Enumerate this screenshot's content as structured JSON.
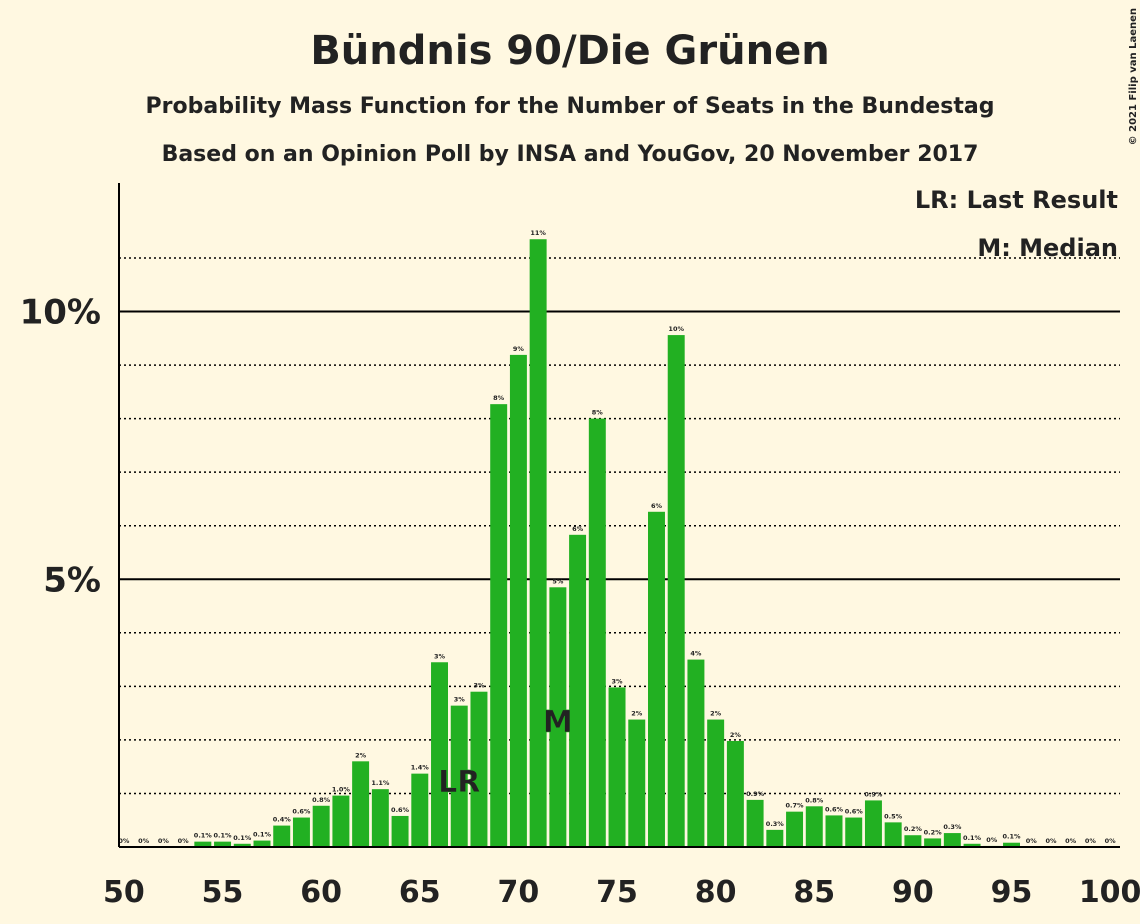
{
  "chart_data": {
    "type": "bar",
    "title": "Bündnis 90/Die Grünen",
    "subtitle": "Probability Mass Function for the Number of Seats in the Bundestag",
    "subtitle2": "Based on an Opinion Poll by INSA and YouGov, 20 November 2017",
    "copyright": "© 2021 Filip van Laenen",
    "legend_notes": [
      "LR: Last Result",
      "M: Median"
    ],
    "markers": [
      {
        "x": 67,
        "label": "LR"
      },
      {
        "x": 72,
        "label": "M"
      }
    ],
    "color": "#22b022",
    "x": [
      50,
      51,
      52,
      53,
      54,
      55,
      56,
      57,
      58,
      59,
      60,
      61,
      62,
      63,
      64,
      65,
      66,
      67,
      68,
      69,
      70,
      71,
      72,
      73,
      74,
      75,
      76,
      77,
      78,
      79,
      80,
      81,
      82,
      83,
      84,
      85,
      86,
      87,
      88,
      89,
      90,
      91,
      92,
      93,
      94,
      95,
      96,
      97,
      98,
      99,
      100
    ],
    "values": [
      0,
      0,
      0,
      0,
      0.1,
      0.1,
      0.06,
      0.12,
      0.4,
      0.55,
      0.77,
      0.96,
      1.6,
      1.08,
      0.58,
      1.37,
      3.45,
      2.64,
      2.9,
      8.27,
      9.19,
      11.35,
      4.85,
      5.83,
      8.0,
      2.98,
      2.38,
      6.26,
      9.56,
      3.5,
      2.38,
      1.98,
      0.88,
      0.32,
      0.66,
      0.76,
      0.59,
      0.55,
      0.87,
      0.46,
      0.22,
      0.16,
      0.26,
      0.06,
      0.02,
      0.08,
      0,
      0,
      0,
      0,
      0
    ],
    "value_labels": [
      "0%",
      "0%",
      "0%",
      "0%",
      "0.1%",
      "0.1%",
      "0.1%",
      "0.1%",
      "0.4%",
      "0.6%",
      "0.8%",
      "1.0%",
      "2%",
      "1.1%",
      "0.6%",
      "1.4%",
      "3%",
      "3%",
      "3%",
      "8%",
      "9%",
      "11%",
      "5%",
      "6%",
      "8%",
      "3%",
      "2%",
      "6%",
      "10%",
      "4%",
      "2%",
      "2%",
      "0.9%",
      "0.3%",
      "0.7%",
      "0.8%",
      "0.6%",
      "0.6%",
      "0.9%",
      "0.5%",
      "0.2%",
      "0.2%",
      "0.3%",
      "0.1%",
      "0%",
      "0.1%",
      "0%",
      "0%",
      "0%",
      "0%",
      "0%"
    ],
    "xlim": [
      49.75,
      100.5
    ],
    "xticks": [
      50,
      55,
      60,
      65,
      70,
      75,
      80,
      85,
      90,
      95,
      100
    ],
    "ylim": [
      0,
      12.4
    ],
    "yticks": [
      {
        "value": 5,
        "label": "5%"
      },
      {
        "value": 10,
        "label": "10%"
      }
    ],
    "minor_yticks": [
      1,
      2,
      3,
      4,
      6,
      7,
      8,
      9,
      11
    ],
    "grid": true
  }
}
